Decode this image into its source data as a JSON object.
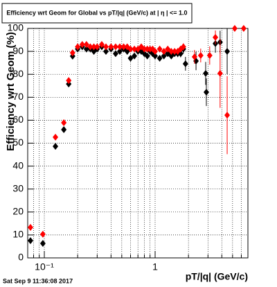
{
  "chart_data": {
    "type": "scatter",
    "title": "Efficiency wrt Geom for Global vs pT/|q| (GeV/c) at | η | <= 1.0",
    "x_label": "pT/|q| (GeV/c)",
    "y_label": "Efficiency wrt Geom (%)",
    "timestamp": "Sat Sep  9 11:36:08 2017",
    "xlim": [
      0.0708,
      6.88
    ],
    "log_x": true,
    "ylim": [
      0,
      100
    ],
    "xticks": [
      {
        "value": 0.1,
        "label": "10⁻¹"
      },
      1
    ],
    "xminor": [
      0.08,
      0.09,
      0.2,
      0.3,
      0.4,
      0.5,
      0.6,
      0.7,
      0.8,
      0.9,
      2,
      3,
      4,
      5,
      6
    ],
    "yticks": [
      0,
      10,
      20,
      30,
      40,
      50,
      60,
      70,
      80,
      90,
      100
    ],
    "grid": true,
    "series": [
      {
        "color": "#000000",
        "x": [
          0.075,
          0.097,
          0.126,
          0.15,
          0.166,
          0.18,
          0.2,
          0.22,
          0.24,
          0.26,
          0.28,
          0.3,
          0.33,
          0.36,
          0.4,
          0.44,
          0.48,
          0.52,
          0.56,
          0.6,
          0.65,
          0.7,
          0.75,
          0.8,
          0.85,
          0.9,
          0.95,
          1.0,
          1.1,
          1.2,
          1.3,
          1.4,
          1.5,
          1.6,
          1.7,
          1.8,
          1.88,
          2.34,
          2.86,
          2.9,
          3.5,
          3.86,
          4.47
        ],
        "values": [
          7.5,
          6.3,
          48.6,
          55.9,
          75.8,
          87.9,
          91,
          92,
          91,
          91,
          90,
          91,
          92,
          90,
          91,
          89,
          90,
          91,
          90,
          87,
          88,
          90,
          90,
          89,
          88,
          90,
          89,
          88,
          87,
          88,
          89,
          88,
          89,
          89,
          89,
          91,
          84.6,
          85.8,
          80.4,
          72.2,
          93.4,
          94,
          90
        ],
        "errors": [
          1,
          1,
          1,
          1,
          1,
          0.8,
          0.6,
          0.6,
          0.6,
          0.6,
          0.6,
          0.6,
          0.6,
          0.6,
          0.6,
          0.6,
          0.6,
          0.6,
          0.7,
          0.7,
          0.7,
          0.7,
          0.7,
          0.8,
          0.8,
          0.8,
          0.9,
          0.9,
          1,
          1,
          1.2,
          1.3,
          1.4,
          1.5,
          1.6,
          2,
          3,
          4,
          5,
          6,
          4,
          5,
          10
        ]
      },
      {
        "color": "#ff0000",
        "x": [
          0.075,
          0.097,
          0.126,
          0.15,
          0.166,
          0.18,
          0.2,
          0.22,
          0.24,
          0.26,
          0.28,
          0.3,
          0.33,
          0.36,
          0.4,
          0.44,
          0.48,
          0.52,
          0.56,
          0.6,
          0.65,
          0.7,
          0.75,
          0.8,
          0.85,
          0.9,
          0.95,
          1.0,
          1.1,
          1.2,
          1.3,
          1.4,
          1.5,
          1.6,
          1.7,
          1.8,
          2.27,
          2.58,
          3.11,
          3.5,
          3.86,
          4.47,
          5.23,
          6.3
        ],
        "values": [
          13.3,
          10.3,
          52.6,
          58.9,
          77.3,
          89.4,
          92,
          93,
          93,
          92,
          92,
          92,
          93,
          92,
          92,
          92,
          92,
          92,
          92,
          91,
          91,
          91,
          92,
          91,
          91,
          91,
          91,
          90,
          91,
          90,
          91,
          90,
          90,
          90,
          91,
          92,
          87.6,
          88.2,
          88.2,
          96.1,
          80.4,
          62.2,
          100,
          100
        ],
        "errors": [
          1,
          1,
          1,
          1,
          1,
          0.8,
          0.6,
          0.6,
          0.6,
          0.6,
          0.6,
          0.6,
          0.6,
          0.6,
          0.6,
          0.6,
          0.6,
          0.6,
          0.6,
          0.6,
          0.7,
          0.7,
          0.7,
          0.7,
          0.7,
          0.8,
          0.8,
          0.8,
          0.9,
          1,
          1,
          1.1,
          1.2,
          1.3,
          1.4,
          1.5,
          3,
          3,
          4,
          3,
          15,
          17,
          0,
          0
        ]
      }
    ]
  }
}
